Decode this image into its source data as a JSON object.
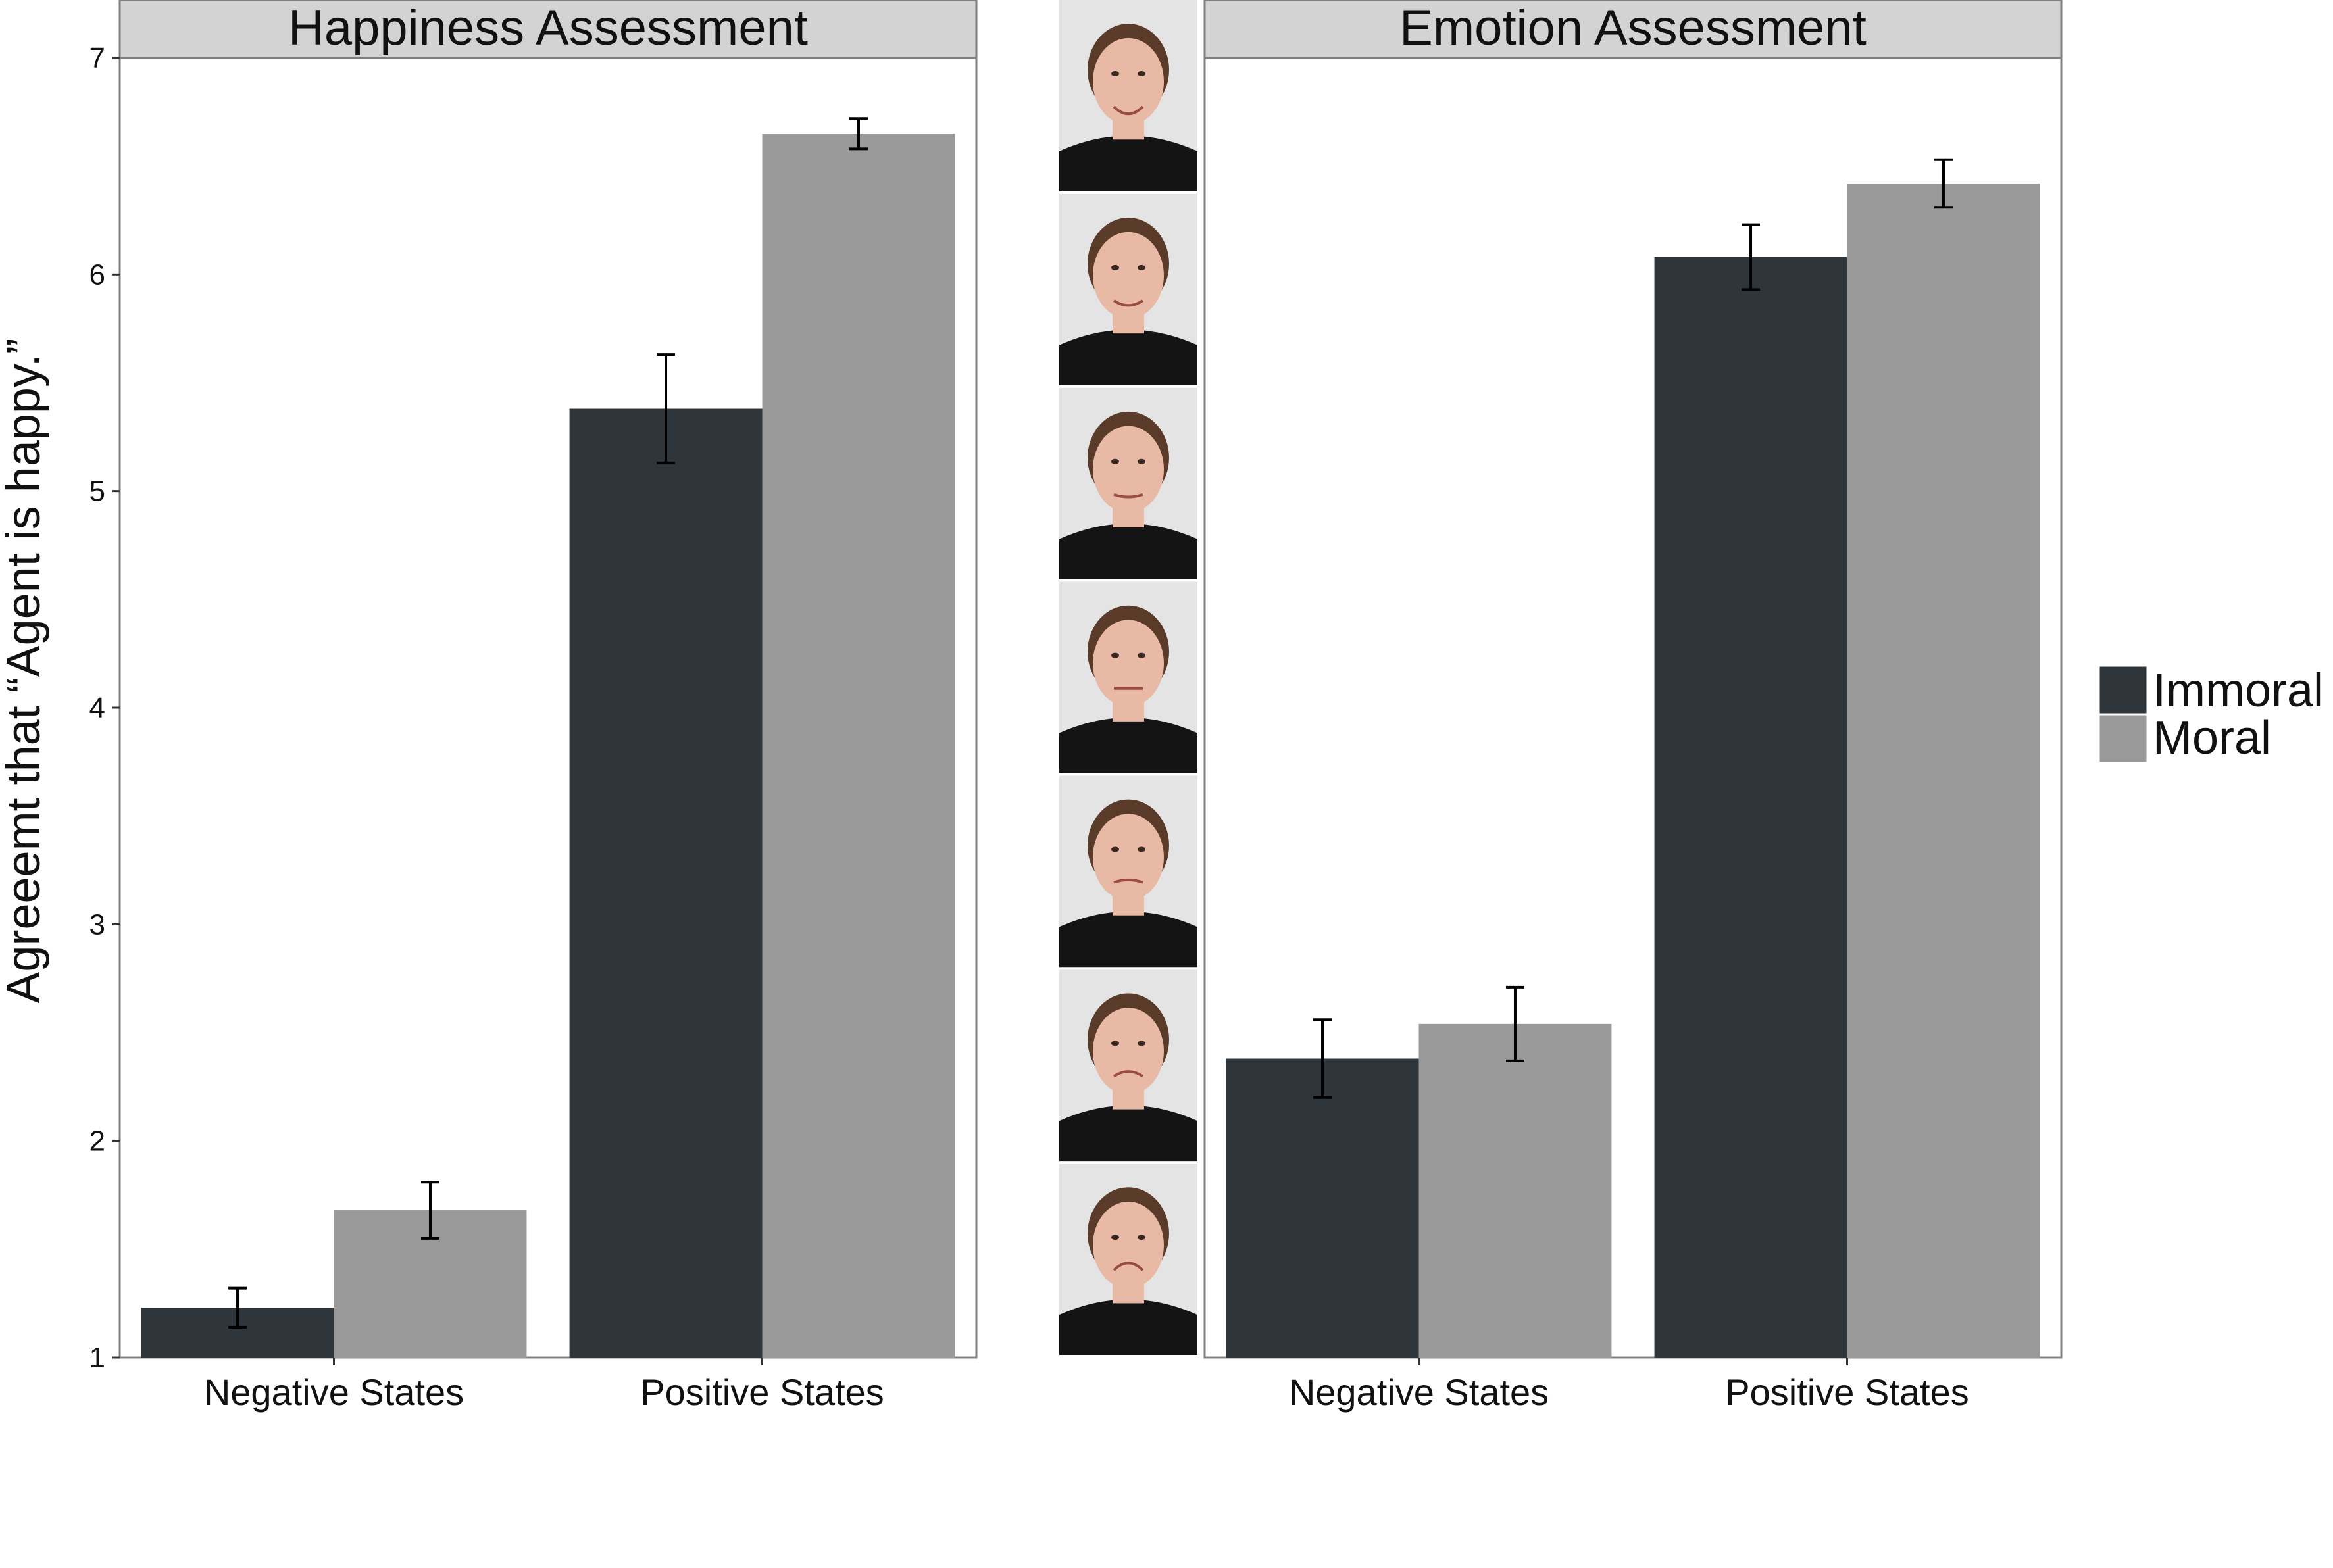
{
  "chart_data": [
    {
      "type": "bar",
      "title": "Happiness Assessment",
      "ylabel": "Agreeemt that “Agent is happy.”",
      "xlabel": "",
      "ylim": [
        1,
        7
      ],
      "yticks": [
        1,
        2,
        3,
        4,
        5,
        6,
        7
      ],
      "categories": [
        "Negative States",
        "Positive States"
      ],
      "series": [
        {
          "name": "Immoral",
          "color": "#2e353b",
          "values": [
            1.23,
            5.38
          ],
          "error": [
            0.09,
            0.25
          ]
        },
        {
          "name": "Moral",
          "color": "#999999",
          "values": [
            1.68,
            6.65
          ],
          "error": [
            0.13,
            0.07
          ]
        }
      ],
      "grid": false
    },
    {
      "type": "bar",
      "title": "Emotion Assessment",
      "xlabel": "",
      "ylim": [
        1,
        7
      ],
      "categories": [
        "Negative States",
        "Positive States"
      ],
      "series": [
        {
          "name": "Immoral",
          "color": "#2e353b",
          "values": [
            2.38,
            6.08
          ],
          "error": [
            0.18,
            0.15
          ]
        },
        {
          "name": "Moral",
          "color": "#999999",
          "values": [
            2.54,
            6.42
          ],
          "error": [
            0.17,
            0.11
          ]
        }
      ],
      "grid": false
    }
  ],
  "legend": {
    "placement": "right",
    "entries": [
      {
        "name": "Immoral",
        "color": "#2e353b"
      },
      {
        "name": "Moral",
        "color": "#999999"
      }
    ]
  },
  "face_strip": {
    "count": 7,
    "icon": "face-photo-icon",
    "order": "smiling-to-frowning"
  },
  "colors": {
    "strip_background": "#d3d3d3",
    "panel_border": "#7f7f7f",
    "photo_background": "#e4e4e4",
    "skin": "#e8b9a4",
    "hair": "#5a3b2a",
    "shirt": "#141414"
  }
}
